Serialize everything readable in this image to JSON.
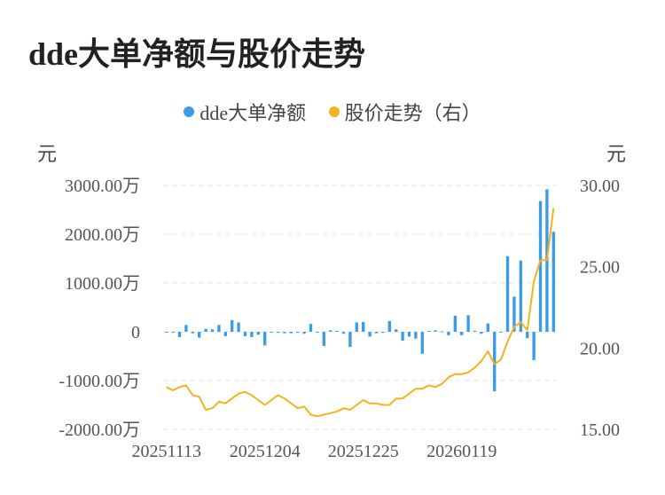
{
  "title": "dde大单净额与股价走势",
  "legend": [
    {
      "label": "dde大单净额",
      "color": "#3a9be8"
    },
    {
      "label": "股价走势（右）",
      "color": "#f5b21c"
    }
  ],
  "left_unit": "元",
  "right_unit": "元",
  "chart_data": {
    "type": "bar+line",
    "x_ticks": [
      "20251113",
      "20251204",
      "20251225",
      "20260119"
    ],
    "left_axis": {
      "ticks": [
        "3000.00万",
        "2000.00万",
        "1000.00万",
        "0",
        "-1000.00万",
        "-2000.00万"
      ],
      "range": [
        -2000,
        3000
      ],
      "unit": "万"
    },
    "right_axis": {
      "ticks": [
        "30.00",
        "25.00",
        "20.00",
        "15.00"
      ],
      "range": [
        15,
        30
      ]
    },
    "grid": true,
    "legend_position": "top-center",
    "series": [
      {
        "name": "dde大单净额",
        "type": "bar",
        "axis": "left",
        "values": [
          -20,
          -20,
          -110,
          140,
          -30,
          -120,
          60,
          50,
          140,
          -90,
          240,
          190,
          -90,
          -110,
          -60,
          -280,
          -10,
          -20,
          -30,
          -30,
          -20,
          -40,
          160,
          -10,
          -290,
          30,
          20,
          -40,
          -310,
          190,
          200,
          -100,
          -30,
          -20,
          220,
          50,
          -180,
          -100,
          -140,
          -450,
          20,
          30,
          10,
          -70,
          330,
          -70,
          340,
          20,
          -40,
          170,
          -1220,
          -10,
          1550,
          720,
          1460,
          -130,
          -580,
          2680,
          2920,
          2050
        ]
      },
      {
        "name": "股价走势（右）",
        "type": "line",
        "axis": "right",
        "values": [
          17.6,
          17.4,
          17.6,
          17.7,
          17.1,
          17.0,
          16.2,
          16.3,
          16.7,
          16.6,
          16.9,
          17.2,
          17.3,
          17.1,
          16.8,
          16.5,
          16.8,
          17.1,
          16.9,
          16.6,
          16.3,
          16.4,
          15.9,
          15.8,
          15.9,
          16.0,
          16.1,
          16.3,
          16.2,
          16.5,
          16.8,
          16.6,
          16.6,
          16.5,
          16.5,
          16.9,
          16.9,
          17.2,
          17.5,
          17.5,
          17.7,
          17.6,
          17.8,
          18.2,
          18.4,
          18.4,
          18.5,
          18.8,
          19.2,
          19.8,
          19.0,
          19.3,
          20.4,
          21.3,
          21.6,
          21.1,
          24.1,
          25.4,
          25.4,
          28.6
        ]
      }
    ]
  }
}
